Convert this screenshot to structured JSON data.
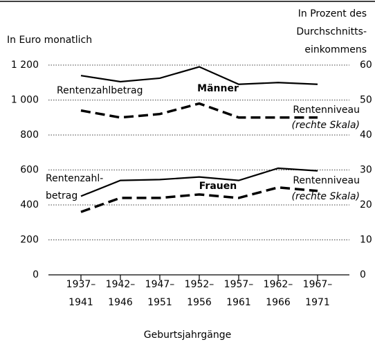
{
  "chart_data": {
    "type": "line",
    "y_label": "In Euro monatlich",
    "y2_label": "In Prozent des\nDurchschnitts-\neinkommens",
    "x_label": "Geburtsjahrgänge",
    "categories": [
      "1937–\n1941",
      "1942–\n1946",
      "1947–\n1951",
      "1952–\n1956",
      "1957–\n1961",
      "1962–\n1966",
      "1967–\n1971"
    ],
    "series": [
      {
        "name": "Rentenzahlbetrag",
        "group": "Männer",
        "color": "#000000",
        "dashed": false,
        "values": [
          1140,
          1105,
          1125,
          1190,
          1090,
          1100,
          1090
        ]
      },
      {
        "name": "Rentenniveau",
        "note": "(rechte Skala)",
        "group": "Männer",
        "color": "#000000",
        "dashed": true,
        "axis": "y2",
        "values": [
          47,
          45,
          46,
          49,
          45,
          45,
          45
        ]
      },
      {
        "name": "Rentenzahl-\nbetrag",
        "group": "Frauen",
        "color": "#000000",
        "dashed": false,
        "values": [
          450,
          540,
          545,
          560,
          540,
          610,
          595
        ]
      },
      {
        "name": "Rentenniveau",
        "note": "(rechte Skala)",
        "group": "Frauen",
        "color": "#000000",
        "dashed": true,
        "axis": "y2",
        "values": [
          18,
          22,
          22,
          23,
          22,
          25,
          24
        ]
      }
    ],
    "ylim": [
      0,
      1200
    ],
    "yticks": [
      0,
      200,
      400,
      600,
      800,
      {
        "value": 1000,
        "label": "1 000"
      },
      {
        "value": 1200,
        "label": "1 200"
      }
    ],
    "y2lim": [
      0,
      60
    ],
    "y2ticks": [
      0,
      10,
      20,
      30,
      40,
      50,
      60
    ],
    "grid": true
  }
}
